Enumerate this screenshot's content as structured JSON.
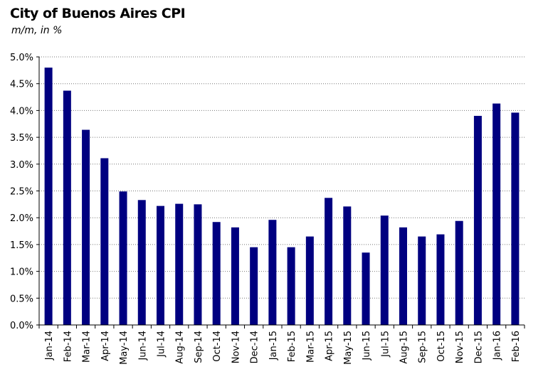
{
  "chart_data": {
    "type": "bar",
    "title": "City of Buenos Aires CPI",
    "subtitle": "m/m, in %",
    "categories": [
      "Jan-14",
      "Feb-14",
      "Mar-14",
      "Apr-14",
      "May-14",
      "Jun-14",
      "Jul-14",
      "Aug-14",
      "Sep-14",
      "Oct-14",
      "Nov-14",
      "Dec-14",
      "Jan-15",
      "Feb-15",
      "Mar-15",
      "Apr-15",
      "May-15",
      "Jun-15",
      "Jul-15",
      "Aug-15",
      "Sep-15",
      "Oct-15",
      "Nov-15",
      "Dec-15",
      "Jan-16",
      "Feb-16"
    ],
    "values": [
      4.8,
      4.37,
      3.64,
      3.11,
      2.49,
      2.33,
      2.22,
      2.26,
      2.25,
      1.92,
      1.82,
      1.45,
      1.96,
      1.45,
      1.65,
      2.37,
      2.21,
      1.35,
      2.04,
      1.82,
      1.65,
      1.69,
      1.94,
      3.9,
      4.13,
      3.96
    ],
    "ylim": [
      0,
      5
    ],
    "yticks": [
      0,
      0.5,
      1,
      1.5,
      2,
      2.5,
      3,
      3.5,
      4,
      4.5,
      5
    ],
    "ytick_labels": [
      "0.0%",
      "0.5%",
      "1.0%",
      "1.5%",
      "2.0%",
      "2.5%",
      "3.0%",
      "3.5%",
      "4.0%",
      "4.5%",
      "5.0%"
    ],
    "xlabel": "",
    "ylabel": "",
    "grid": true,
    "legend": false,
    "bar_color": "#000080"
  }
}
